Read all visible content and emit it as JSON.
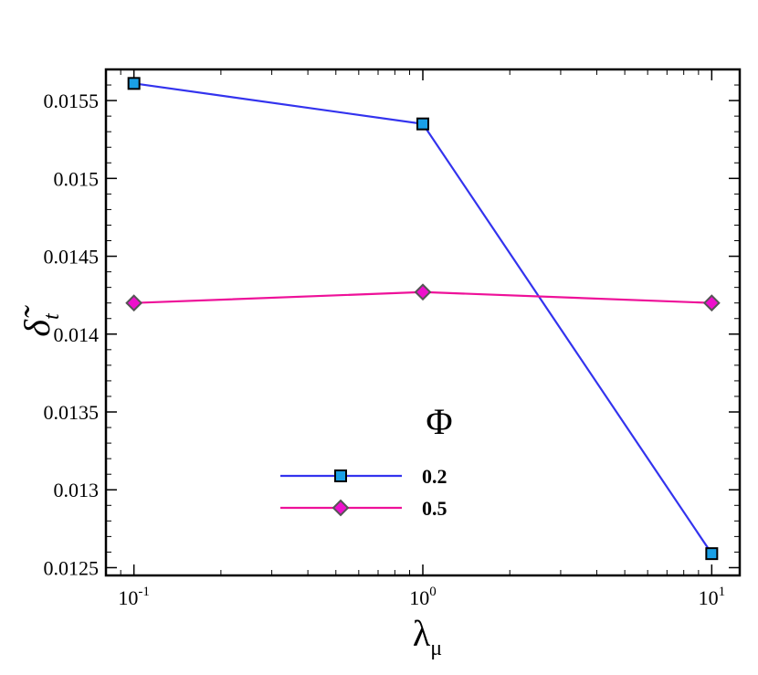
{
  "chart_data": {
    "type": "line",
    "x_scale": "log",
    "xlabel": "λ",
    "xlabel_sub": "μ",
    "ylabel": "δ̃",
    "ylabel_sub": "t",
    "xlim": [
      0.08,
      12.5
    ],
    "ylim": [
      0.01245,
      0.0157
    ],
    "x_ticks": [
      {
        "value": 0.1,
        "base": "10",
        "exp": "-1"
      },
      {
        "value": 1,
        "base": "10",
        "exp": "0"
      },
      {
        "value": 10,
        "base": "10",
        "exp": "1"
      }
    ],
    "y_ticks": [
      {
        "value": 0.0125,
        "label": "0.0125"
      },
      {
        "value": 0.013,
        "label": "0.013"
      },
      {
        "value": 0.0135,
        "label": "0.0135"
      },
      {
        "value": 0.014,
        "label": "0.014"
      },
      {
        "value": 0.0145,
        "label": "0.0145"
      },
      {
        "value": 0.015,
        "label": "0.015"
      },
      {
        "value": 0.0155,
        "label": "0.0155"
      }
    ],
    "x": [
      0.1,
      1,
      10
    ],
    "series": [
      {
        "name": "0.2",
        "values": [
          0.01561,
          0.01535,
          0.01259
        ],
        "color": "#3333ee",
        "marker": "square",
        "marker_fill": "#1aa0e6",
        "marker_stroke": "#000000"
      },
      {
        "name": "0.5",
        "values": [
          0.0142,
          0.01427,
          0.0142
        ],
        "color": "#ee1199",
        "marker": "diamond",
        "marker_fill": "#ee10cc",
        "marker_stroke": "#555555"
      }
    ],
    "legend": {
      "title": "Φ",
      "placement": "lower-center"
    },
    "grid": false
  }
}
